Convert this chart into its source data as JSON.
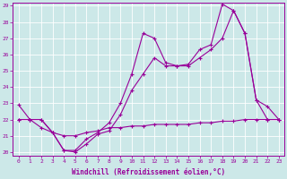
{
  "xlabel": "Windchill (Refroidissement éolien,°C)",
  "bg_color": "#cce8e8",
  "line_color": "#990099",
  "grid_color": "#ffffff",
  "xlim": [
    -0.5,
    23.5
  ],
  "ylim": [
    19.8,
    29.2
  ],
  "yticks": [
    20,
    21,
    22,
    23,
    24,
    25,
    26,
    27,
    28,
    29
  ],
  "xticks": [
    0,
    1,
    2,
    3,
    4,
    5,
    6,
    7,
    8,
    9,
    10,
    11,
    12,
    13,
    14,
    15,
    16,
    17,
    18,
    19,
    20,
    21,
    22,
    23
  ],
  "line1_x": [
    0,
    1,
    2,
    3,
    4,
    5,
    6,
    7,
    8,
    9,
    10,
    11,
    12,
    13,
    14,
    15,
    16,
    17,
    18,
    19,
    20,
    21,
    22,
    23
  ],
  "line1_y": [
    22.9,
    22.0,
    22.0,
    21.2,
    20.1,
    20.1,
    20.8,
    21.2,
    21.8,
    23.0,
    24.8,
    27.3,
    27.0,
    25.5,
    25.3,
    25.4,
    26.3,
    26.6,
    29.1,
    28.7,
    27.3,
    23.2,
    22.8,
    22.0
  ],
  "line2_x": [
    0,
    1,
    2,
    3,
    4,
    5,
    6,
    7,
    8,
    9,
    10,
    11,
    12,
    13,
    14,
    15,
    16,
    17,
    18,
    19,
    20,
    21,
    22,
    23
  ],
  "line2_y": [
    22.0,
    22.0,
    22.0,
    21.2,
    20.1,
    20.0,
    20.5,
    21.1,
    21.3,
    22.3,
    23.8,
    24.8,
    25.8,
    25.3,
    25.3,
    25.3,
    25.8,
    26.3,
    27.0,
    28.7,
    27.3,
    23.2,
    22.0,
    22.0
  ],
  "line3_x": [
    0,
    1,
    2,
    3,
    4,
    5,
    6,
    7,
    8,
    9,
    10,
    11,
    12,
    13,
    14,
    15,
    16,
    17,
    18,
    19,
    20,
    21,
    22,
    23
  ],
  "line3_y": [
    22.0,
    22.0,
    21.5,
    21.2,
    21.0,
    21.0,
    21.2,
    21.3,
    21.5,
    21.5,
    21.6,
    21.6,
    21.7,
    21.7,
    21.7,
    21.7,
    21.8,
    21.8,
    21.9,
    21.9,
    22.0,
    22.0,
    22.0,
    22.0
  ]
}
